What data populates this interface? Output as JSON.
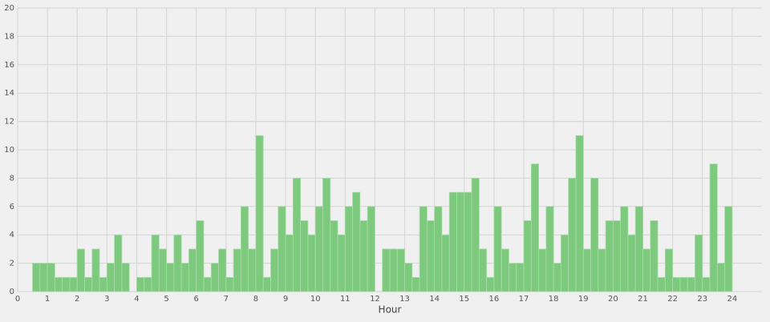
{
  "chart_data": {
    "type": "histogram",
    "xlabel": "Hour",
    "bins": [
      0.5,
      0.75,
      1,
      1.25,
      1.5,
      1.75,
      2,
      2.25,
      2.5,
      2.75,
      3,
      3.25,
      3.5,
      3.75,
      4,
      4.25,
      4.5,
      4.75,
      5,
      5.25,
      5.5,
      5.75,
      6,
      6.25,
      6.5,
      6.75,
      7,
      7.25,
      7.5,
      7.75,
      8,
      8.25,
      8.5,
      8.75,
      9,
      9.25,
      9.5,
      9.75,
      10,
      10.25,
      10.5,
      10.75,
      11,
      11.25,
      11.5,
      11.75,
      12,
      12.25,
      12.5,
      12.75,
      13,
      13.25,
      13.5,
      13.75,
      14,
      14.25,
      14.5,
      14.75,
      15,
      15.25,
      15.5,
      15.75,
      16,
      16.25,
      16.5,
      16.75,
      17,
      17.25,
      17.5,
      17.75,
      18,
      18.25,
      18.5,
      18.75,
      19,
      19.25,
      19.5,
      19.75,
      20,
      20.25,
      20.5,
      20.75,
      21,
      21.25,
      21.5,
      21.75,
      22,
      22.25,
      22.5,
      22.75,
      23,
      23.25,
      23.5,
      23.75,
      24
    ],
    "counts": [
      2,
      2,
      2,
      1,
      1,
      1,
      3,
      1,
      3,
      1,
      2,
      4,
      2,
      0,
      1,
      1,
      4,
      3,
      2,
      4,
      2,
      3,
      5,
      1,
      2,
      3,
      1,
      3,
      6,
      3,
      11,
      1,
      3,
      6,
      4,
      8,
      5,
      4,
      6,
      8,
      5,
      4,
      6,
      7,
      5,
      6,
      0,
      3,
      3,
      3,
      2,
      1,
      6,
      5,
      6,
      4,
      7,
      7,
      7,
      8,
      3,
      1,
      6,
      3,
      2,
      2,
      5,
      9,
      3,
      6,
      2,
      4,
      8,
      11,
      3,
      8,
      3,
      5,
      5,
      6,
      4,
      6,
      3,
      5,
      1,
      3,
      1,
      1,
      1,
      4,
      1,
      9,
      2,
      6
    ],
    "color": "#7dc97d",
    "xlim": [
      0,
      25
    ],
    "ylim": [
      0,
      20
    ],
    "xticks": [
      0,
      1,
      2,
      3,
      4,
      5,
      6,
      7,
      8,
      9,
      10,
      11,
      12,
      13,
      14,
      15,
      16,
      17,
      18,
      19,
      20,
      21,
      22,
      23,
      24
    ],
    "yticks": [
      0,
      2,
      4,
      6,
      8,
      10,
      12,
      14,
      16,
      18,
      20
    ],
    "grid": true
  }
}
